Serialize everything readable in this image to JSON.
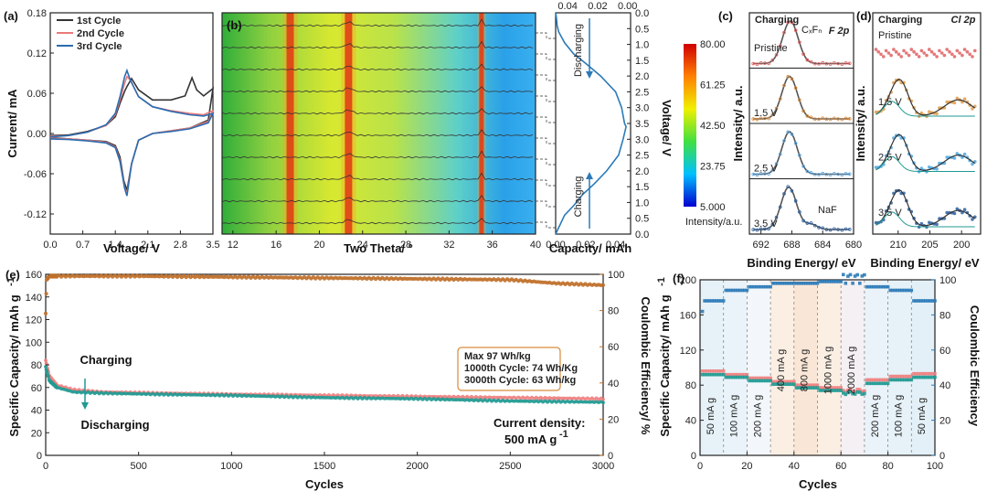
{
  "panels": {
    "a": {
      "label": "(a)",
      "chart_data": {
        "type": "line",
        "xlabel": "Voltage/ V",
        "ylabel": "Current/ mA",
        "xlim": [
          0.0,
          3.5
        ],
        "ylim": [
          -0.15,
          0.18
        ],
        "xticks": [
          "0.0",
          "0.7",
          "1.4",
          "2.1",
          "2.8",
          "3.5"
        ],
        "yticks": [
          "0.18",
          "0.12",
          "0.06",
          "0.00",
          "-0.06",
          "-0.12"
        ],
        "legend": "top-left",
        "series": [
          {
            "name": "1st Cycle",
            "color": "#333333",
            "x": [
              0.0,
              0.4,
              0.8,
              1.2,
              1.4,
              1.5,
              1.6,
              1.65,
              1.75,
              1.9,
              2.2,
              2.6,
              2.9,
              3.05,
              3.15,
              3.3,
              3.5,
              3.4,
              3.0,
              2.6,
              2.2,
              1.9,
              1.75,
              1.65,
              1.58,
              1.5,
              1.4,
              1.2,
              0.8,
              0.4,
              0.0
            ],
            "y": [
              -0.003,
              -0.002,
              0.003,
              0.012,
              0.025,
              0.045,
              0.063,
              0.07,
              0.082,
              0.065,
              0.05,
              0.05,
              0.056,
              0.083,
              0.065,
              0.056,
              0.067,
              0.02,
              0.008,
              0.004,
              0.0,
              -0.01,
              -0.045,
              -0.085,
              -0.07,
              -0.035,
              -0.018,
              -0.012,
              -0.01,
              -0.008,
              -0.006
            ]
          },
          {
            "name": "2nd Cycle",
            "color": "#e87a7a",
            "x": [
              0.0,
              0.4,
              0.8,
              1.2,
              1.4,
              1.5,
              1.6,
              1.65,
              1.72,
              1.9,
              2.2,
              2.6,
              3.0,
              3.3,
              3.5,
              3.4,
              3.0,
              2.6,
              2.2,
              1.9,
              1.75,
              1.65,
              1.6,
              1.5,
              1.4,
              1.2,
              0.8,
              0.4,
              0.0
            ],
            "y": [
              -0.004,
              -0.003,
              0.002,
              0.012,
              0.028,
              0.05,
              0.075,
              0.085,
              0.08,
              0.055,
              0.04,
              0.034,
              0.03,
              0.028,
              0.034,
              0.018,
              0.008,
              0.004,
              0.0,
              -0.01,
              -0.045,
              -0.09,
              -0.08,
              -0.04,
              -0.02,
              -0.013,
              -0.01,
              -0.008,
              -0.007
            ]
          },
          {
            "name": "3rd Cycle",
            "color": "#2b6cb0",
            "x": [
              0.0,
              0.4,
              0.8,
              1.2,
              1.4,
              1.5,
              1.6,
              1.65,
              1.72,
              1.9,
              2.2,
              2.6,
              3.0,
              3.3,
              3.5,
              3.4,
              3.0,
              2.6,
              2.2,
              1.9,
              1.75,
              1.65,
              1.6,
              1.5,
              1.4,
              1.2,
              0.8,
              0.4,
              0.0
            ],
            "y": [
              -0.005,
              -0.003,
              0.002,
              0.013,
              0.03,
              0.055,
              0.085,
              0.094,
              0.08,
              0.055,
              0.04,
              0.033,
              0.028,
              0.026,
              0.03,
              0.016,
              0.007,
              0.003,
              0.0,
              -0.01,
              -0.045,
              -0.093,
              -0.082,
              -0.042,
              -0.021,
              -0.014,
              -0.011,
              -0.009,
              -0.008
            ]
          }
        ]
      }
    },
    "b": {
      "label": "(b)",
      "chart_data": {
        "type": "heatmap",
        "xlabel": "Two Theta/ °",
        "xlim": [
          11,
          40
        ],
        "xticks": [
          "12",
          "16",
          "20",
          "24",
          "28",
          "32",
          "36",
          "40"
        ],
        "colorbar": {
          "ticks": [
            "80.00",
            "61.25",
            "42.50",
            "23.75",
            "5.000"
          ],
          "label": "Intensity/a.u.",
          "range": [
            5.0,
            80.0
          ]
        },
        "peaks_two_theta": [
          17.3,
          22.7,
          35.0
        ],
        "colors": {
          "high": "#d01010",
          "mid": "#c8e830",
          "low": "#1a40e0"
        }
      }
    },
    "b_side": {
      "chart_data": {
        "type": "line",
        "xlabel": "Capacity/ mAh",
        "ylabel": "Voltage/ V",
        "top_xticks": [
          "0.04",
          "0.02",
          "0.00"
        ],
        "bottom_xticks": [
          "0.00",
          "0.02",
          "0.04"
        ],
        "yticks": [
          "0.0",
          "0.5",
          "1.0",
          "1.5",
          "2.0",
          "2.5",
          "3.0",
          "3.5",
          "3.0",
          "2.5",
          "2.0",
          "1.5",
          "1.0",
          "0.5",
          "0.0"
        ],
        "annotations": [
          "Discharging",
          "Charging"
        ],
        "series": [
          {
            "name": "",
            "color": "#2b7ab8",
            "capacity": [
              0.0,
              0.0005,
              0.001,
              0.002,
              0.006,
              0.012,
              0.02,
              0.03,
              0.04,
              0.044,
              0.046,
              0.047,
              0.045,
              0.042,
              0.034,
              0.026,
              0.018,
              0.012,
              0.006,
              0.003,
              0.001,
              0.0
            ],
            "voltage_index": [
              0.0,
              0.3,
              0.8,
              1.2,
              1.9,
              2.6,
              3.2,
              4.0,
              5.0,
              6.0,
              7.0,
              7.2,
              8.0,
              9.0,
              10.0,
              10.8,
              11.5,
              12.2,
              12.8,
              13.4,
              13.8,
              14.0
            ]
          }
        ]
      }
    },
    "c": {
      "label": "(c)",
      "title": "F 2p",
      "xlabel": "Binding Energy/ eV",
      "ylabel": "Intensity/ a.u.",
      "xticks": [
        "692",
        "688",
        "684",
        "680"
      ],
      "chart_data": {
        "type": "line",
        "xlim": [
          693.5,
          680
        ],
        "header": "Charging",
        "annotations": [
          "CₓFₙ",
          "NaF"
        ],
        "spectra": [
          {
            "label": "Pristine",
            "label_color": "#e06060",
            "peak": 688.2
          },
          {
            "label": "1.5 V",
            "label_color": "#d98a3a",
            "peak": 688.3
          },
          {
            "label": "2.5 V",
            "label_color": "#5aa6e0",
            "peak": 688.3
          },
          {
            "label": "3.5 V",
            "label_color": "#2b5fa0",
            "peak": 688.4,
            "extra_peak": 685.5
          }
        ]
      }
    },
    "d": {
      "label": "(d)",
      "title": "Cl 2p",
      "xlabel": "Binding Energy/ eV",
      "ylabel": "Intensity/ a.u.",
      "xticks": [
        "210",
        "205",
        "200"
      ],
      "chart_data": {
        "type": "scatter",
        "xlim": [
          214,
          197
        ],
        "header": "Charging",
        "spectra": [
          {
            "label": "Pristine",
            "label_color": "#e06060",
            "flat": true
          },
          {
            "label": "1.5 V",
            "label_color": "#e09a4a",
            "peaks": [
              209.5,
              200.5
            ]
          },
          {
            "label": "2.5 V",
            "label_color": "#4aa6e0",
            "peaks": [
              209.5,
              200.5
            ]
          },
          {
            "label": "3.5 V",
            "label_color": "#2b5fa0",
            "peaks": [
              209.5,
              200.5
            ]
          }
        ]
      }
    },
    "e": {
      "label": "(e)",
      "chart_data": {
        "type": "scatter",
        "xlabel": "Cycles",
        "ylabel": "Specific Capacity/ mAh g",
        "ylabel_sup": "-1",
        "y2label": "Coulombic Efficiency/ %",
        "xlim": [
          0,
          3000
        ],
        "ylim": [
          0,
          160
        ],
        "y2lim": [
          0,
          100
        ],
        "xticks": [
          "0",
          "500",
          "1000",
          "1500",
          "2000",
          "2500",
          "3000"
        ],
        "yticks": [
          "0",
          "20",
          "40",
          "60",
          "80",
          "100",
          "120",
          "140",
          "160"
        ],
        "y2ticks": [
          "0",
          "20",
          "40",
          "60",
          "80",
          "100"
        ],
        "series": [
          {
            "name": "Charging",
            "color": "#f08080",
            "x": [
              0,
              20,
              60,
              150,
              300,
              600,
              1000,
              1500,
              2000,
              2500,
              3000
            ],
            "y": [
              84,
              70,
              62,
              58,
              56,
              55,
              54,
              53,
              52,
              51,
              50
            ]
          },
          {
            "name": "Discharging",
            "color": "#1f9a92",
            "x": [
              0,
              20,
              60,
              150,
              300,
              600,
              1000,
              1500,
              2000,
              2500,
              3000
            ],
            "y": [
              78,
              66,
              60,
              56,
              55,
              54,
              53,
              51,
              50,
              48,
              47
            ]
          },
          {
            "name": "Coulombic Efficiency",
            "color": "#c0702a",
            "x": [
              0,
              5,
              20,
              500,
              1000,
              1500,
              2000,
              2500,
              2750,
              3000
            ],
            "y": [
              78,
              97,
              99,
              99,
              98.5,
              98,
              97.5,
              97,
              95,
              94
            ]
          }
        ],
        "info_box": [
          "Max 97 Wh/kg",
          "1000th Cycle: 74 Wh/Kg",
          "3000th Cycle: 63 Wh/kg"
        ],
        "note": [
          "Current density:",
          "500 mA g"
        ],
        "note_sup": "-1"
      }
    },
    "f": {
      "label": "(f)",
      "chart_data": {
        "type": "scatter",
        "xlabel": "Cycles",
        "ylabel": "Specific Capacity/ mAh g",
        "ylabel_sup": "-1",
        "y2label": "Coulombic Efficiency",
        "xlim": [
          0,
          100
        ],
        "ylim": [
          0,
          200
        ],
        "y2lim": [
          0,
          100
        ],
        "xticks": [
          "0",
          "20",
          "40",
          "60",
          "80",
          "100"
        ],
        "yticks": [
          "0",
          "40",
          "80",
          "120",
          "160",
          "200"
        ],
        "y2ticks": [
          "0",
          "20",
          "40",
          "60",
          "80",
          "100"
        ],
        "rates": [
          "50 mA g",
          "100 mA g",
          "200 mA g",
          "400 mA g",
          "800 mA g",
          "1000 mA g",
          "2000 mA g",
          "200 mA g",
          "100 mA g",
          "50 mA g"
        ],
        "rate_sup": "-1",
        "segment_bounds": [
          0,
          10,
          20,
          30,
          40,
          50,
          60,
          70,
          80,
          90,
          100
        ],
        "series": [
          {
            "name": "Charging",
            "color": "#f08080",
            "levels": [
              96,
              92,
              88,
              84,
              80,
              77,
              74,
              86,
              90,
              93
            ]
          },
          {
            "name": "Discharging",
            "color": "#1f9a92",
            "levels": [
              92,
              89,
              85,
              81,
              77,
              74,
              71,
              82,
              86,
              89
            ]
          },
          {
            "name": "Coulombic Efficiency",
            "color": "#2b7ab8",
            "levels": [
              88,
              94,
              96,
              98,
              98,
              99,
              101,
              96,
              94,
              88
            ]
          }
        ]
      }
    }
  }
}
